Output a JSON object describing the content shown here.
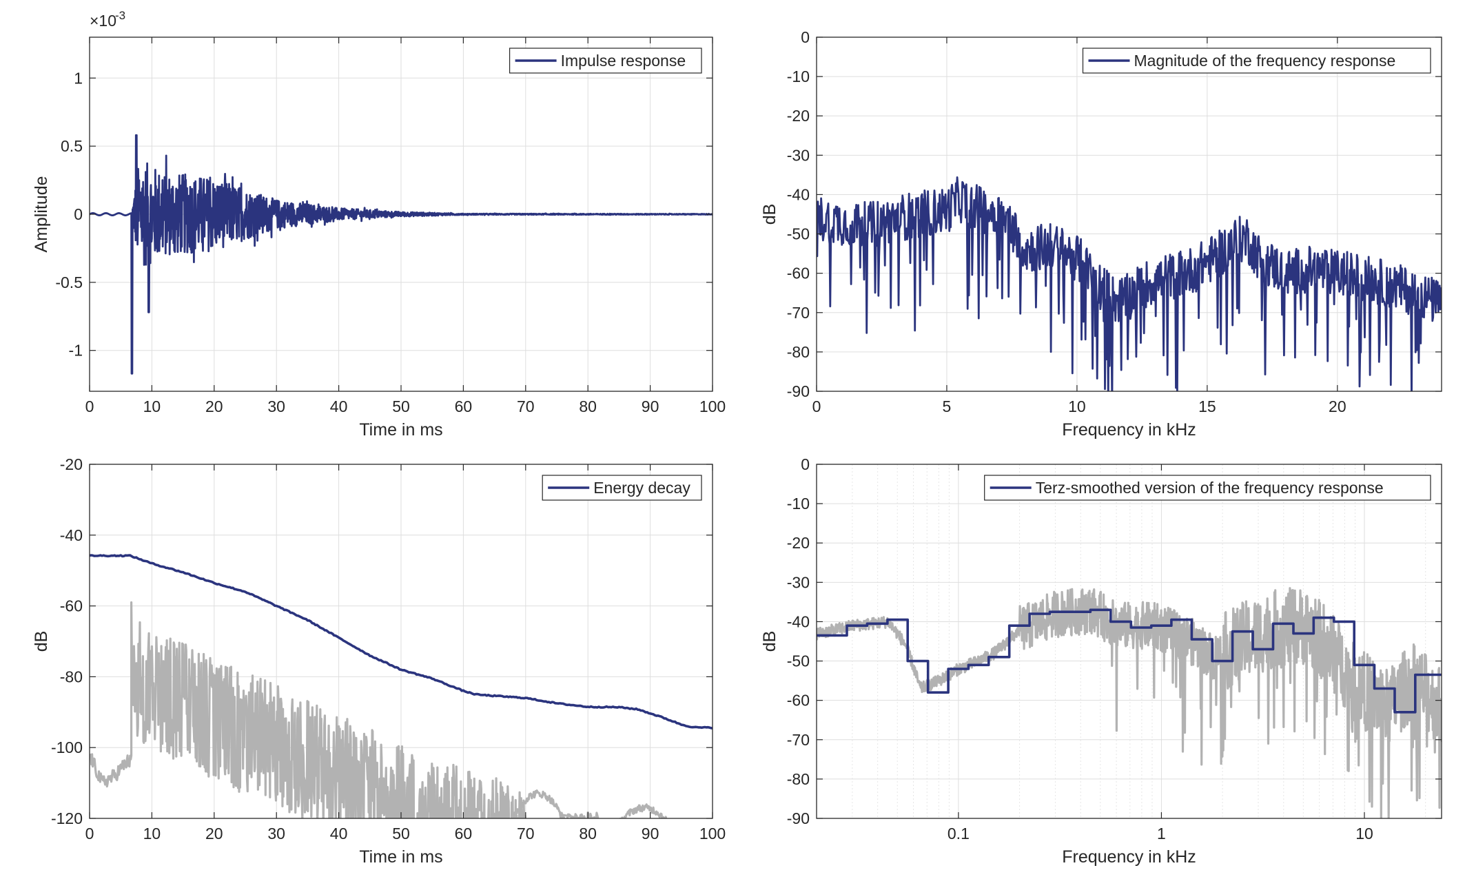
{
  "chart_data": [
    {
      "type": "line",
      "panel": "top-left",
      "xlabel": "Time in ms",
      "ylabel": "Amplitude",
      "xlim": [
        0,
        100
      ],
      "ylim": [
        -1.3,
        1.3
      ],
      "exponent_label": "×10",
      "exponent_power": "-3",
      "xticks": [
        0,
        10,
        20,
        30,
        40,
        50,
        60,
        70,
        80,
        90,
        100
      ],
      "xtick_labels": [
        "0",
        "10",
        "20",
        "30",
        "40",
        "50",
        "60",
        "70",
        "80",
        "90",
        "100"
      ],
      "yticks": [
        1,
        0.5,
        0,
        -0.5,
        -1
      ],
      "ytick_labels": [
        "1",
        "0.5",
        "0",
        "-0.5",
        "-1"
      ],
      "grid": true,
      "legend_position": "top-right",
      "series": [
        {
          "name": "Impulse response",
          "color": "#2b347e",
          "kind": "impulse",
          "onset_ms": 6.7,
          "first_peak": -1.17,
          "max_peak": 0.58,
          "envelope_points": [
            [
              0,
              0.005
            ],
            [
              6.5,
              0.01
            ],
            [
              8,
              0.45
            ],
            [
              12,
              0.35
            ],
            [
              20,
              0.3
            ],
            [
              30,
              0.12
            ],
            [
              40,
              0.05
            ],
            [
              50,
              0.02
            ],
            [
              60,
              0.005
            ],
            [
              100,
              0.003
            ]
          ]
        }
      ]
    },
    {
      "type": "line",
      "panel": "top-right",
      "xlabel": "Frequency in kHz",
      "ylabel": "dB",
      "xlim": [
        0,
        24
      ],
      "ylim": [
        -90,
        0
      ],
      "xticks": [
        0,
        5,
        10,
        15,
        20
      ],
      "xtick_labels": [
        "0",
        "5",
        "10",
        "15",
        "20"
      ],
      "yticks": [
        0,
        -10,
        -20,
        -30,
        -40,
        -50,
        -60,
        -70,
        -80,
        -90
      ],
      "ytick_labels": [
        "0",
        "-10",
        "-20",
        "-30",
        "-40",
        "-50",
        "-60",
        "-70",
        "-80",
        "-90"
      ],
      "grid": true,
      "legend_position": "top-right",
      "series": [
        {
          "name": "Magnitude of the frequency response",
          "color": "#2b347e",
          "kind": "noisy",
          "trend": [
            [
              0,
              -46
            ],
            [
              1,
              -47
            ],
            [
              2,
              -48
            ],
            [
              3,
              -46
            ],
            [
              4,
              -45
            ],
            [
              5,
              -44
            ],
            [
              5.5,
              -41
            ],
            [
              6,
              -43
            ],
            [
              7,
              -45
            ],
            [
              7.7,
              -50
            ],
            [
              8,
              -54
            ],
            [
              9,
              -53
            ],
            [
              10,
              -56
            ],
            [
              10.5,
              -60
            ],
            [
              11,
              -64
            ],
            [
              11.5,
              -67
            ],
            [
              12,
              -66
            ],
            [
              12.5,
              -63
            ],
            [
              13,
              -62
            ],
            [
              13.5,
              -61
            ],
            [
              14,
              -60
            ],
            [
              14.5,
              -59
            ],
            [
              15,
              -57
            ],
            [
              15.5,
              -55
            ],
            [
              16,
              -52
            ],
            [
              16.5,
              -51
            ],
            [
              17,
              -56
            ],
            [
              18,
              -60
            ],
            [
              19,
              -59
            ],
            [
              20,
              -60
            ],
            [
              21,
              -61
            ],
            [
              22,
              -63
            ],
            [
              23,
              -65
            ],
            [
              24,
              -68
            ]
          ]
        }
      ]
    },
    {
      "type": "line",
      "panel": "bottom-left",
      "xlabel": "Time in ms",
      "ylabel": "dB",
      "xlim": [
        0,
        100
      ],
      "ylim": [
        -120,
        -20
      ],
      "xticks": [
        0,
        10,
        20,
        30,
        40,
        50,
        60,
        70,
        80,
        90,
        100
      ],
      "xtick_labels": [
        "0",
        "10",
        "20",
        "30",
        "40",
        "50",
        "60",
        "70",
        "80",
        "90",
        "100"
      ],
      "yticks": [
        -20,
        -40,
        -60,
        -80,
        -100,
        -120
      ],
      "ytick_labels": [
        "-20",
        "-40",
        "-60",
        "-80",
        "-100",
        "-120"
      ],
      "grid": true,
      "legend_position": "top-right",
      "series": [
        {
          "name": "Energy decay",
          "color": "#2b347e",
          "kind": "smooth",
          "points": [
            [
              0,
              -45.8
            ],
            [
              6.5,
              -45.8
            ],
            [
              10,
              -48
            ],
            [
              15,
              -50.5
            ],
            [
              20,
              -53.5
            ],
            [
              25,
              -56
            ],
            [
              30,
              -60
            ],
            [
              35,
              -64
            ],
            [
              40,
              -69
            ],
            [
              45,
              -74
            ],
            [
              50,
              -78
            ],
            [
              55,
              -80.5
            ],
            [
              60,
              -84
            ],
            [
              62,
              -85
            ],
            [
              65,
              -85.4
            ],
            [
              70,
              -86
            ],
            [
              75,
              -87.5
            ],
            [
              80,
              -88.5
            ],
            [
              85,
              -88.6
            ],
            [
              88,
              -89.2
            ],
            [
              92,
              -91.5
            ],
            [
              95,
              -93.5
            ],
            [
              97,
              -94.3
            ],
            [
              100,
              -94.4
            ]
          ]
        },
        {
          "color": "#b2b2b2",
          "kind": "noisy_energy",
          "onset_ms": 6.7,
          "onset_peak_db": -59,
          "trend": [
            [
              6.7,
              -68
            ],
            [
              10,
              -70
            ],
            [
              20,
              -80
            ],
            [
              30,
              -87
            ],
            [
              40,
              -95
            ],
            [
              50,
              -104
            ],
            [
              60,
              -110
            ],
            [
              70,
              -117
            ],
            [
              80,
              -122
            ]
          ],
          "pre_onset": [
            [
              0,
              -102
            ],
            [
              2,
              -110
            ],
            [
              4,
              -108
            ],
            [
              6,
              -104
            ]
          ],
          "late_humps": [
            [
              68,
              76,
              -113
            ],
            [
              84,
              94,
              -117
            ]
          ]
        }
      ]
    },
    {
      "type": "line",
      "panel": "bottom-right",
      "xlabel": "Frequency in kHz",
      "ylabel": "dB",
      "xscale": "log",
      "xlim": [
        0.02,
        24
      ],
      "ylim": [
        -90,
        0
      ],
      "xticks": [
        0.1,
        1,
        10
      ],
      "xtick_labels": [
        "0.1",
        "1",
        "10"
      ],
      "yticks": [
        0,
        -10,
        -20,
        -30,
        -40,
        -50,
        -60,
        -70,
        -80,
        -90
      ],
      "ytick_labels": [
        "0",
        "-10",
        "-20",
        "-30",
        "-40",
        "-50",
        "-60",
        "-70",
        "-80",
        "-90"
      ],
      "grid": true,
      "legend_position": "top-right",
      "series": [
        {
          "name": "Terz-smoothed version of the frequency response",
          "color": "#2b347e",
          "kind": "steps",
          "edges": [
            0.02,
            0.0282,
            0.0355,
            0.0447,
            0.0562,
            0.0708,
            0.0891,
            0.112,
            0.141,
            0.178,
            0.224,
            0.282,
            0.355,
            0.447,
            0.562,
            0.708,
            0.891,
            1.12,
            1.41,
            1.78,
            2.24,
            2.82,
            3.55,
            4.47,
            5.62,
            7.08,
            8.91,
            11.2,
            14.1,
            17.8,
            24
          ],
          "values": [
            -43.5,
            -41,
            -40.5,
            -39.5,
            -50,
            -58,
            -52,
            -51,
            -49,
            -41,
            -38,
            -37.5,
            -37.5,
            -37,
            -40,
            -41.5,
            -41,
            -39.5,
            -44.5,
            -50,
            -42.5,
            -47,
            -40.5,
            -43,
            -39,
            -40,
            -51,
            -57,
            -63,
            -53.5
          ]
        },
        {
          "color": "#b2b2b2",
          "kind": "noisy_log",
          "trend": [
            [
              0.02,
              -43
            ],
            [
              0.03,
              -41
            ],
            [
              0.045,
              -40
            ],
            [
              0.055,
              -46
            ],
            [
              0.065,
              -57
            ],
            [
              0.08,
              -55
            ],
            [
              0.1,
              -52
            ],
            [
              0.15,
              -48
            ],
            [
              0.2,
              -42
            ],
            [
              0.3,
              -38
            ],
            [
              0.45,
              -37
            ],
            [
              0.6,
              -41
            ],
            [
              0.9,
              -41
            ],
            [
              1.3,
              -44
            ],
            [
              1.8,
              -49
            ],
            [
              2.5,
              -45
            ],
            [
              3.5,
              -42
            ],
            [
              5,
              -41
            ],
            [
              6.5,
              -46
            ],
            [
              9,
              -56
            ],
            [
              13,
              -62
            ],
            [
              17,
              -55
            ],
            [
              24,
              -62
            ]
          ]
        }
      ]
    }
  ]
}
